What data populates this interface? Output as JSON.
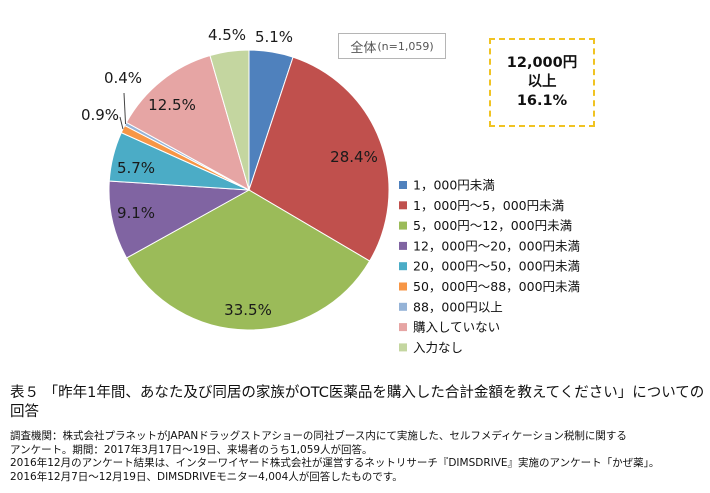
{
  "chart_data": {
    "type": "pie",
    "subset_label": "全体",
    "subset_n": "(n=1,059)",
    "slices": [
      {
        "label": "1，000円未満",
        "value": 5.1,
        "display": "5.1%",
        "color": "#4f81bd"
      },
      {
        "label": "1，000円～5，000円未満",
        "value": 28.4,
        "display": "28.4%",
        "color": "#c0504d"
      },
      {
        "label": "5，000円～12，000円未満",
        "value": 33.5,
        "display": "33.5%",
        "color": "#9bbb59"
      },
      {
        "label": "12，000円～20，000円未満",
        "value": 9.1,
        "display": "9.1%",
        "color": "#8064a2"
      },
      {
        "label": "20，000円～50，000円未満",
        "value": 5.7,
        "display": "5.7%",
        "color": "#4bacc6"
      },
      {
        "label": "50，000円～88，000円未満",
        "value": 0.9,
        "display": "0.9%",
        "color": "#f79646"
      },
      {
        "label": "88，000円以上",
        "value": 0.4,
        "display": "0.4%",
        "color": "#95b3d7"
      },
      {
        "label": "購入していない",
        "value": 12.5,
        "display": "12.5%",
        "color": "#e6a5a4"
      },
      {
        "label": "入力なし",
        "value": 4.5,
        "display": "4.5%",
        "color": "#c4d6a0"
      }
    ],
    "callout": {
      "line1": "12,000円",
      "line2": "以上",
      "line3": "16.1%"
    }
  },
  "caption": {
    "title": "表５ 「昨年1年間、あなた及び同居の家族がOTC医薬品を購入した合計金額を教えてください」についての回答"
  },
  "notes": [
    "調査機関：株式会社プラネットがJAPANドラッグストアショーの同社ブース内にて実施した、セルフメディケーション税制に関する",
    "アンケート。期間：2017年3月17日～19日、来場者のうち1,059人が回答。",
    "2016年12月のアンケート結果は、インターワイヤード株式会社が運営するネットリサーチ『DIMSDRIVE』実施のアンケート「かぜ薬」。",
    "2016年12月7日～12月19日、DIMSDRIVEモニター4,004人が回答したものです。"
  ]
}
